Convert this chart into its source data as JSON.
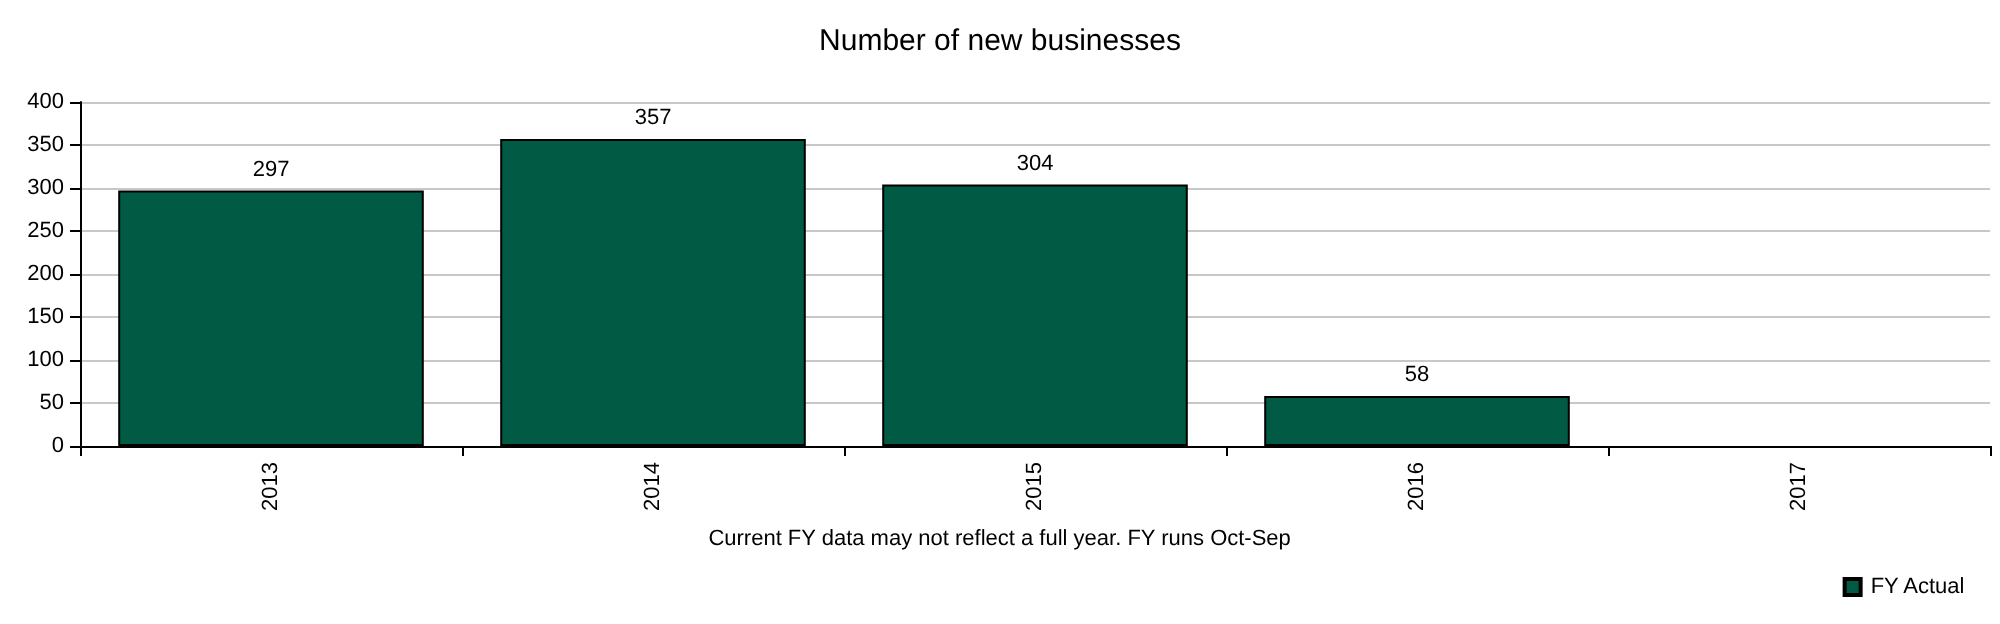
{
  "chart_data": {
    "type": "bar",
    "title": "Number of new businesses",
    "categories": [
      "2013",
      "2014",
      "2015",
      "2016",
      "2017"
    ],
    "series": [
      {
        "name": "FY Actual",
        "color": "#005a44",
        "values": [
          297,
          357,
          304,
          58,
          null
        ]
      }
    ],
    "ylim": [
      0,
      400
    ],
    "yticks": [
      0,
      50,
      100,
      150,
      200,
      250,
      300,
      350,
      400
    ],
    "grid": "y",
    "legend": "bottom right",
    "data_labels": true,
    "annotations": [
      "Current FY data may not reflect a full year. FY runs Oct-Sep"
    ]
  }
}
